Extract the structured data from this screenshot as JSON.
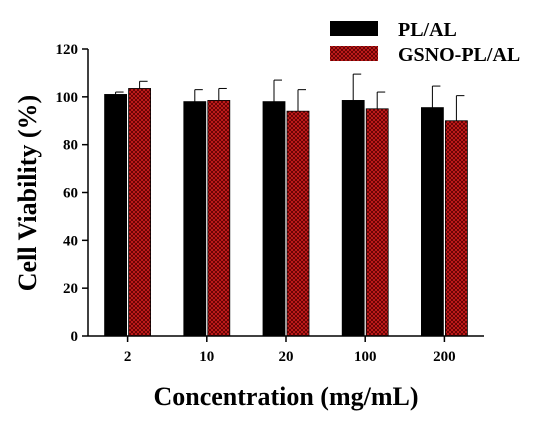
{
  "chart_data": {
    "type": "bar",
    "xlabel": "Concentration (mg/mL)",
    "ylabel": "Cell Viability (%)",
    "ylim": [
      0,
      120
    ],
    "yticks": [
      0,
      20,
      40,
      60,
      80,
      100,
      120
    ],
    "categories": [
      "2",
      "10",
      "20",
      "100",
      "200"
    ],
    "legend_position": "top-right",
    "grid": false,
    "series": [
      {
        "name": "PL/AL",
        "color": "#000000",
        "pattern": "solid",
        "values": [
          101,
          98,
          98,
          98.5,
          95.5
        ],
        "errors": [
          1,
          5,
          9,
          11,
          9
        ]
      },
      {
        "name": "GSNO-PL/AL",
        "color": "#cc1a1a",
        "pattern": "crosshatch",
        "values": [
          103.5,
          98.5,
          94,
          95,
          90
        ],
        "errors": [
          3,
          5,
          9,
          7,
          10.5
        ]
      }
    ]
  }
}
